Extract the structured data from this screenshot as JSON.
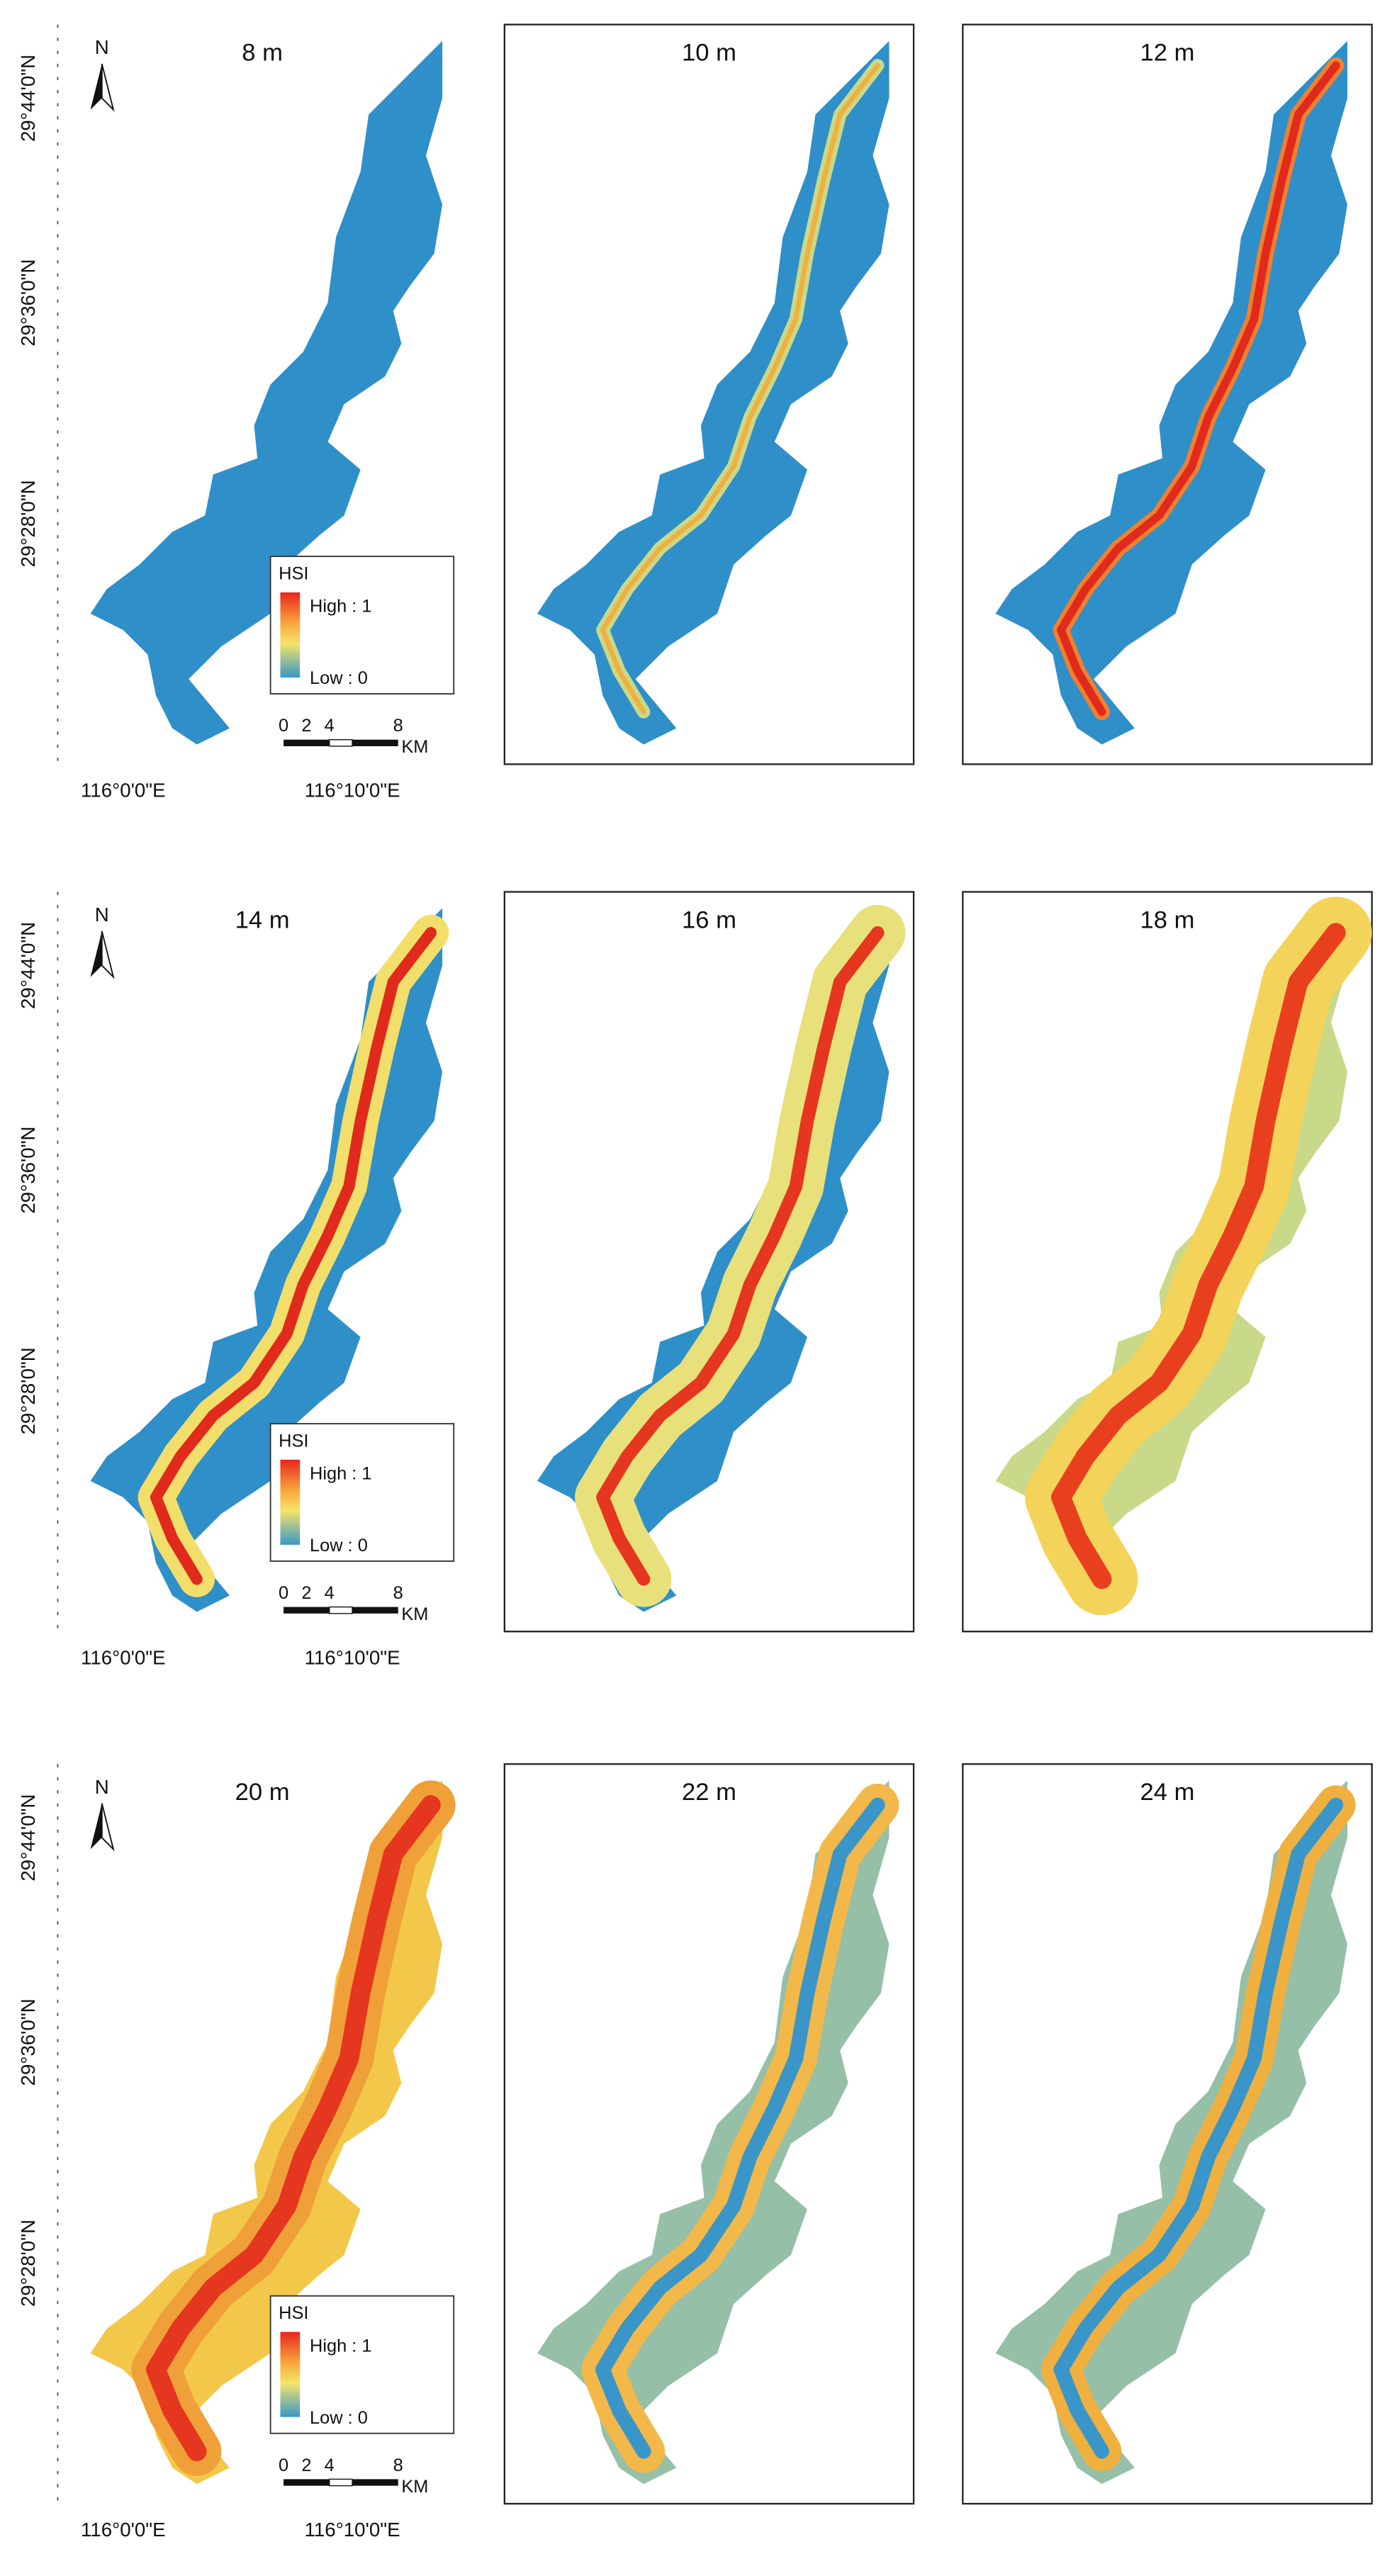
{
  "north": "N",
  "panels": [
    {
      "title": "8 m"
    },
    {
      "title": "10 m"
    },
    {
      "title": "12 m"
    },
    {
      "title": "14 m"
    },
    {
      "title": "16 m"
    },
    {
      "title": "18 m"
    },
    {
      "title": "20 m"
    },
    {
      "title": "22 m"
    },
    {
      "title": "24 m"
    }
  ],
  "axes": {
    "lat": [
      "29°44'0\"N",
      "29°36'0\"N",
      "29°28'0\"N"
    ],
    "lon": [
      "116°0'0\"E",
      "116°10'0\"E"
    ]
  },
  "legend": {
    "title": "HSI",
    "high": "High : 1",
    "low": "Low : 0"
  },
  "scale_bar": {
    "labels": [
      "0",
      "2",
      "4",
      "8"
    ],
    "unit": "KM"
  }
}
